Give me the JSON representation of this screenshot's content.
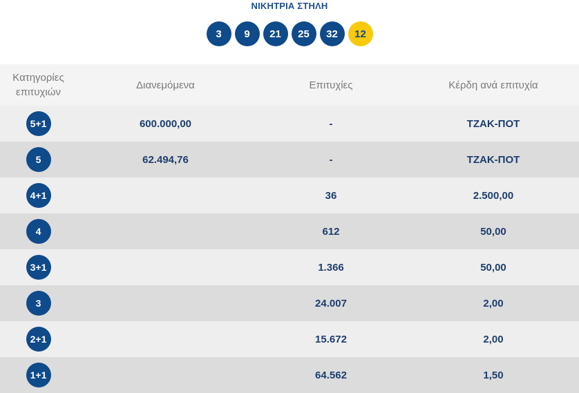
{
  "header": {
    "title": "ΝΙΚΗΤΡΙΑ ΣΤΗΛΗ",
    "numbers": [
      "3",
      "9",
      "21",
      "25",
      "32"
    ],
    "bonus": "12"
  },
  "table": {
    "columns": [
      "Κατηγορίες επιτυχιών",
      "Διανεμόμενα",
      "Επιτυχίες",
      "Κέρδη ανά επιτυχία"
    ],
    "rows": [
      {
        "category": "5+1",
        "distributed": "600.000,00",
        "winners": "-",
        "prize": "ΤΖΑΚ-ΠΟΤ"
      },
      {
        "category": "5",
        "distributed": "62.494,76",
        "winners": "-",
        "prize": "ΤΖΑΚ-ΠΟΤ"
      },
      {
        "category": "4+1",
        "distributed": "",
        "winners": "36",
        "prize": "2.500,00"
      },
      {
        "category": "4",
        "distributed": "",
        "winners": "612",
        "prize": "50,00"
      },
      {
        "category": "3+1",
        "distributed": "",
        "winners": "1.366",
        "prize": "50,00"
      },
      {
        "category": "3",
        "distributed": "",
        "winners": "24.007",
        "prize": "2,00"
      },
      {
        "category": "2+1",
        "distributed": "",
        "winners": "15.672",
        "prize": "2,00"
      },
      {
        "category": "1+1",
        "distributed": "",
        "winners": "64.562",
        "prize": "1,50"
      }
    ]
  },
  "colors": {
    "ball": "#0f4a8a",
    "bonus_ball": "#f9c90c",
    "text_accent": "#1d4f91"
  }
}
